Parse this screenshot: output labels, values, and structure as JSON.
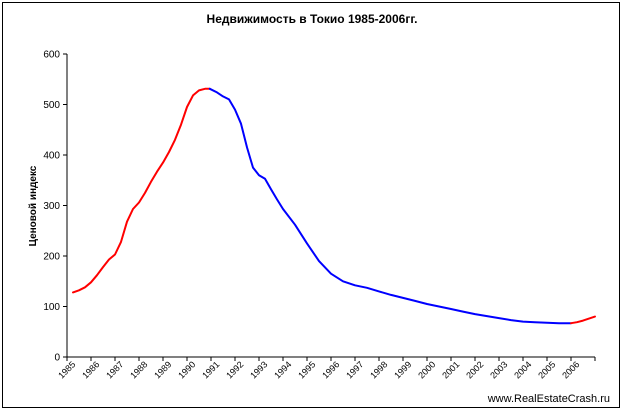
{
  "chart_data": {
    "type": "line",
    "title": "Недвижимость в Токио 1985-2006гг.",
    "xlabel": "",
    "ylabel": "Ценовой индекс",
    "ylim": [
      0,
      600
    ],
    "xlim": [
      1985,
      2007
    ],
    "yticks": [
      "0",
      "100",
      "200",
      "300",
      "400",
      "500",
      "600"
    ],
    "xticks": [
      "1985",
      "1986",
      "1987",
      "1988",
      "1989",
      "1990",
      "1991",
      "1992",
      "1993",
      "1994",
      "1995",
      "1996",
      "1997",
      "1998",
      "1999",
      "2000",
      "2001",
      "2002",
      "2003",
      "2004",
      "2005",
      "2006"
    ],
    "grid": false,
    "series": [
      {
        "color": "#ff0000",
        "x": [
          1985.25,
          1985.5,
          1985.75,
          1986.0,
          1986.25,
          1986.5,
          1986.75,
          1987.0,
          1987.25,
          1987.5,
          1987.75,
          1988.0,
          1988.25,
          1988.5,
          1988.75,
          1989.0,
          1989.25,
          1989.5,
          1989.75,
          1990.0,
          1990.25,
          1990.5,
          1990.75,
          1990.95
        ],
        "y": [
          128,
          132,
          138,
          148,
          162,
          178,
          193,
          203,
          228,
          268,
          293,
          306,
          325,
          347,
          367,
          385,
          406,
          430,
          460,
          495,
          518,
          528,
          531,
          531
        ]
      },
      {
        "color": "#0000ff",
        "x": [
          1990.95,
          1991.25,
          1991.5,
          1991.75,
          1992.0,
          1992.25,
          1992.5,
          1992.75,
          1993.0,
          1993.25,
          1993.5,
          1993.75,
          1994.0,
          1994.5,
          1995.0,
          1995.5,
          1996.0,
          1996.5,
          1997.0,
          1997.5,
          1998.0,
          1998.5,
          1999.0,
          1999.5,
          2000.0,
          2000.5,
          2001.0,
          2001.5,
          2002.0,
          2002.5,
          2003.0,
          2003.5,
          2004.0,
          2004.5,
          2005.0,
          2005.5,
          2006.0
        ],
        "y": [
          531,
          524,
          516,
          510,
          490,
          462,
          415,
          375,
          360,
          353,
          332,
          312,
          293,
          262,
          225,
          190,
          165,
          150,
          142,
          137,
          130,
          123,
          117,
          111,
          105,
          100,
          95,
          90,
          85,
          81,
          77,
          73,
          70,
          69,
          68,
          67,
          67
        ]
      },
      {
        "color": "#ff0000",
        "x": [
          2006.0,
          2006.25,
          2006.5,
          2006.75,
          2007.0
        ],
        "y": [
          67,
          69,
          72,
          76,
          80
        ]
      }
    ],
    "annotations": [
      "www.RealEstateCrash.ru"
    ]
  }
}
